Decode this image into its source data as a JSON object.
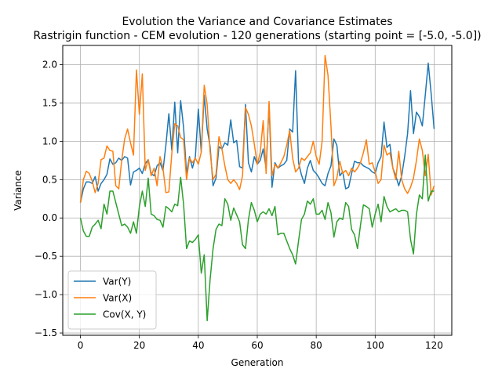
{
  "chart_data": {
    "type": "line",
    "title": "Evolution the Variance and Covariance Estimates",
    "subtitle": "Rastrigin function - CEM evolution - 120 generations (starting point = [-5.0, -5.0])",
    "xlabel": "Generation",
    "ylabel": "Variance",
    "xlim": [
      -6,
      126
    ],
    "ylim": [
      -1.53,
      2.25
    ],
    "xticks": [
      0,
      20,
      40,
      60,
      80,
      100,
      120
    ],
    "yticks": [
      -1.5,
      -1.0,
      -0.5,
      0.0,
      0.5,
      1.0,
      1.5,
      2.0
    ],
    "xtick_labels": [
      "0",
      "20",
      "40",
      "60",
      "80",
      "100",
      "120"
    ],
    "ytick_labels": [
      "−1.5",
      "−1.0",
      "−0.5",
      "0.0",
      "0.5",
      "1.0",
      "1.5",
      "2.0"
    ],
    "grid": true,
    "legend_position": "lower-left",
    "x": [
      0,
      1,
      2,
      3,
      4,
      5,
      6,
      7,
      8,
      9,
      10,
      11,
      12,
      13,
      14,
      15,
      16,
      17,
      18,
      19,
      20,
      21,
      22,
      23,
      24,
      25,
      26,
      27,
      28,
      29,
      30,
      31,
      32,
      33,
      34,
      35,
      36,
      37,
      38,
      39,
      40,
      41,
      42,
      43,
      44,
      45,
      46,
      47,
      48,
      49,
      50,
      51,
      52,
      53,
      54,
      55,
      56,
      57,
      58,
      59,
      60,
      61,
      62,
      63,
      64,
      65,
      66,
      67,
      68,
      69,
      70,
      71,
      72,
      73,
      74,
      75,
      76,
      77,
      78,
      79,
      80,
      81,
      82,
      83,
      84,
      85,
      86,
      87,
      88,
      89,
      90,
      91,
      92,
      93,
      94,
      95,
      96,
      97,
      98,
      99,
      100,
      101,
      102,
      103,
      104,
      105,
      106,
      107,
      108,
      109,
      110,
      111,
      112,
      113,
      114,
      115,
      116,
      117,
      118,
      119,
      120
    ],
    "series": [
      {
        "name": "Var(Y)",
        "legend_label": "Var(Y)",
        "color": "#1f77b4",
        "values": [
          0.2,
          0.38,
          0.47,
          0.47,
          0.45,
          0.54,
          0.35,
          0.45,
          0.5,
          0.57,
          0.77,
          0.7,
          0.72,
          0.78,
          0.75,
          0.8,
          0.78,
          0.43,
          0.6,
          0.62,
          0.65,
          0.58,
          0.71,
          0.76,
          0.58,
          0.55,
          0.68,
          0.72,
          0.62,
          0.95,
          1.36,
          0.88,
          1.51,
          0.85,
          1.53,
          1.18,
          0.58,
          0.8,
          0.65,
          0.8,
          1.42,
          0.86,
          1.6,
          1.16,
          0.93,
          0.42,
          0.52,
          0.93,
          0.9,
          0.98,
          0.95,
          1.28,
          0.98,
          1.01,
          0.67,
          0.65,
          1.48,
          0.72,
          0.6,
          0.8,
          0.7,
          0.75,
          0.9,
          0.65,
          1.48,
          0.4,
          0.72,
          0.65,
          0.68,
          0.7,
          0.75,
          1.16,
          1.12,
          1.92,
          0.72,
          0.56,
          0.45,
          0.65,
          0.75,
          0.62,
          0.58,
          0.52,
          0.45,
          0.42,
          0.58,
          0.68,
          1.03,
          0.95,
          0.55,
          0.6,
          0.38,
          0.4,
          0.58,
          0.74,
          0.72,
          0.72,
          0.68,
          0.66,
          0.64,
          0.6,
          0.58,
          0.72,
          0.8,
          1.25,
          0.92,
          0.96,
          0.65,
          0.55,
          0.42,
          0.55,
          0.8,
          1.1,
          1.66,
          1.1,
          1.38,
          1.32,
          1.2,
          1.6,
          2.02,
          1.62,
          1.16
        ]
      },
      {
        "name": "Var(X)",
        "legend_label": "Var(X)",
        "color": "#ff7f0e",
        "values": [
          0.2,
          0.5,
          0.61,
          0.58,
          0.48,
          0.33,
          0.45,
          0.76,
          0.78,
          0.94,
          0.88,
          0.87,
          0.42,
          0.38,
          0.75,
          1.03,
          1.16,
          0.98,
          0.82,
          1.93,
          1.35,
          1.88,
          0.62,
          0.76,
          0.55,
          0.65,
          0.42,
          0.8,
          0.65,
          0.33,
          0.34,
          0.84,
          1.23,
          1.2,
          1.05,
          1.02,
          0.5,
          0.78,
          0.72,
          0.78,
          0.7,
          0.86,
          1.73,
          1.48,
          0.86,
          0.5,
          0.57,
          1.06,
          0.9,
          0.68,
          0.5,
          0.45,
          0.5,
          0.45,
          0.37,
          0.55,
          1.44,
          1.35,
          1.2,
          0.96,
          0.7,
          0.85,
          1.27,
          0.58,
          1.52,
          0.55,
          0.7,
          0.65,
          0.72,
          0.8,
          0.95,
          1.14,
          0.78,
          0.6,
          0.65,
          0.78,
          0.75,
          0.8,
          0.85,
          1.0,
          0.8,
          0.7,
          1.0,
          2.12,
          1.86,
          1.2,
          0.42,
          0.52,
          0.74,
          0.58,
          0.62,
          0.55,
          0.65,
          0.6,
          0.65,
          0.72,
          0.85,
          1.02,
          0.7,
          0.72,
          0.6,
          0.45,
          0.5,
          0.95,
          0.82,
          0.85,
          0.65,
          0.5,
          0.87,
          0.5,
          0.38,
          0.32,
          0.4,
          0.52,
          0.75,
          1.03,
          0.88,
          0.55,
          0.83,
          0.3,
          0.42
        ]
      },
      {
        "name": "Cov(X,Y)",
        "legend_label": "Cov(X, Y)",
        "color": "#2ca02c",
        "values": [
          0.0,
          -0.17,
          -0.24,
          -0.24,
          -0.12,
          -0.08,
          -0.03,
          -0.14,
          0.18,
          0.05,
          0.35,
          0.35,
          0.2,
          0.05,
          -0.1,
          -0.08,
          -0.12,
          -0.2,
          -0.05,
          -0.2,
          0.15,
          0.35,
          0.15,
          0.52,
          0.05,
          0.03,
          -0.02,
          -0.03,
          -0.12,
          0.15,
          0.12,
          0.08,
          0.18,
          0.16,
          0.53,
          0.18,
          -0.4,
          -0.3,
          -0.32,
          -0.28,
          -0.22,
          -0.72,
          -0.48,
          -1.34,
          -0.8,
          -0.4,
          -0.15,
          -0.08,
          -0.1,
          0.25,
          0.18,
          -0.03,
          0.13,
          0.04,
          -0.05,
          -0.35,
          -0.4,
          -0.02,
          0.2,
          0.1,
          -0.05,
          0.05,
          0.08,
          0.05,
          0.12,
          0.03,
          0.15,
          -0.22,
          -0.2,
          -0.2,
          -0.3,
          -0.4,
          -0.48,
          -0.6,
          -0.3,
          -0.02,
          0.05,
          0.22,
          0.18,
          0.25,
          0.05,
          0.05,
          0.1,
          -0.02,
          0.2,
          0.07,
          -0.25,
          -0.05,
          0.0,
          -0.02,
          0.2,
          0.15,
          -0.15,
          -0.22,
          -0.4,
          -0.1,
          0.17,
          0.15,
          0.12,
          -0.12,
          0.05,
          0.18,
          -0.05,
          0.28,
          0.15,
          0.08,
          0.1,
          0.12,
          0.08,
          0.1,
          0.1,
          0.08,
          -0.28,
          -0.47,
          0.05,
          0.3,
          0.25,
          0.82,
          0.22,
          0.35,
          0.35
        ]
      }
    ]
  }
}
